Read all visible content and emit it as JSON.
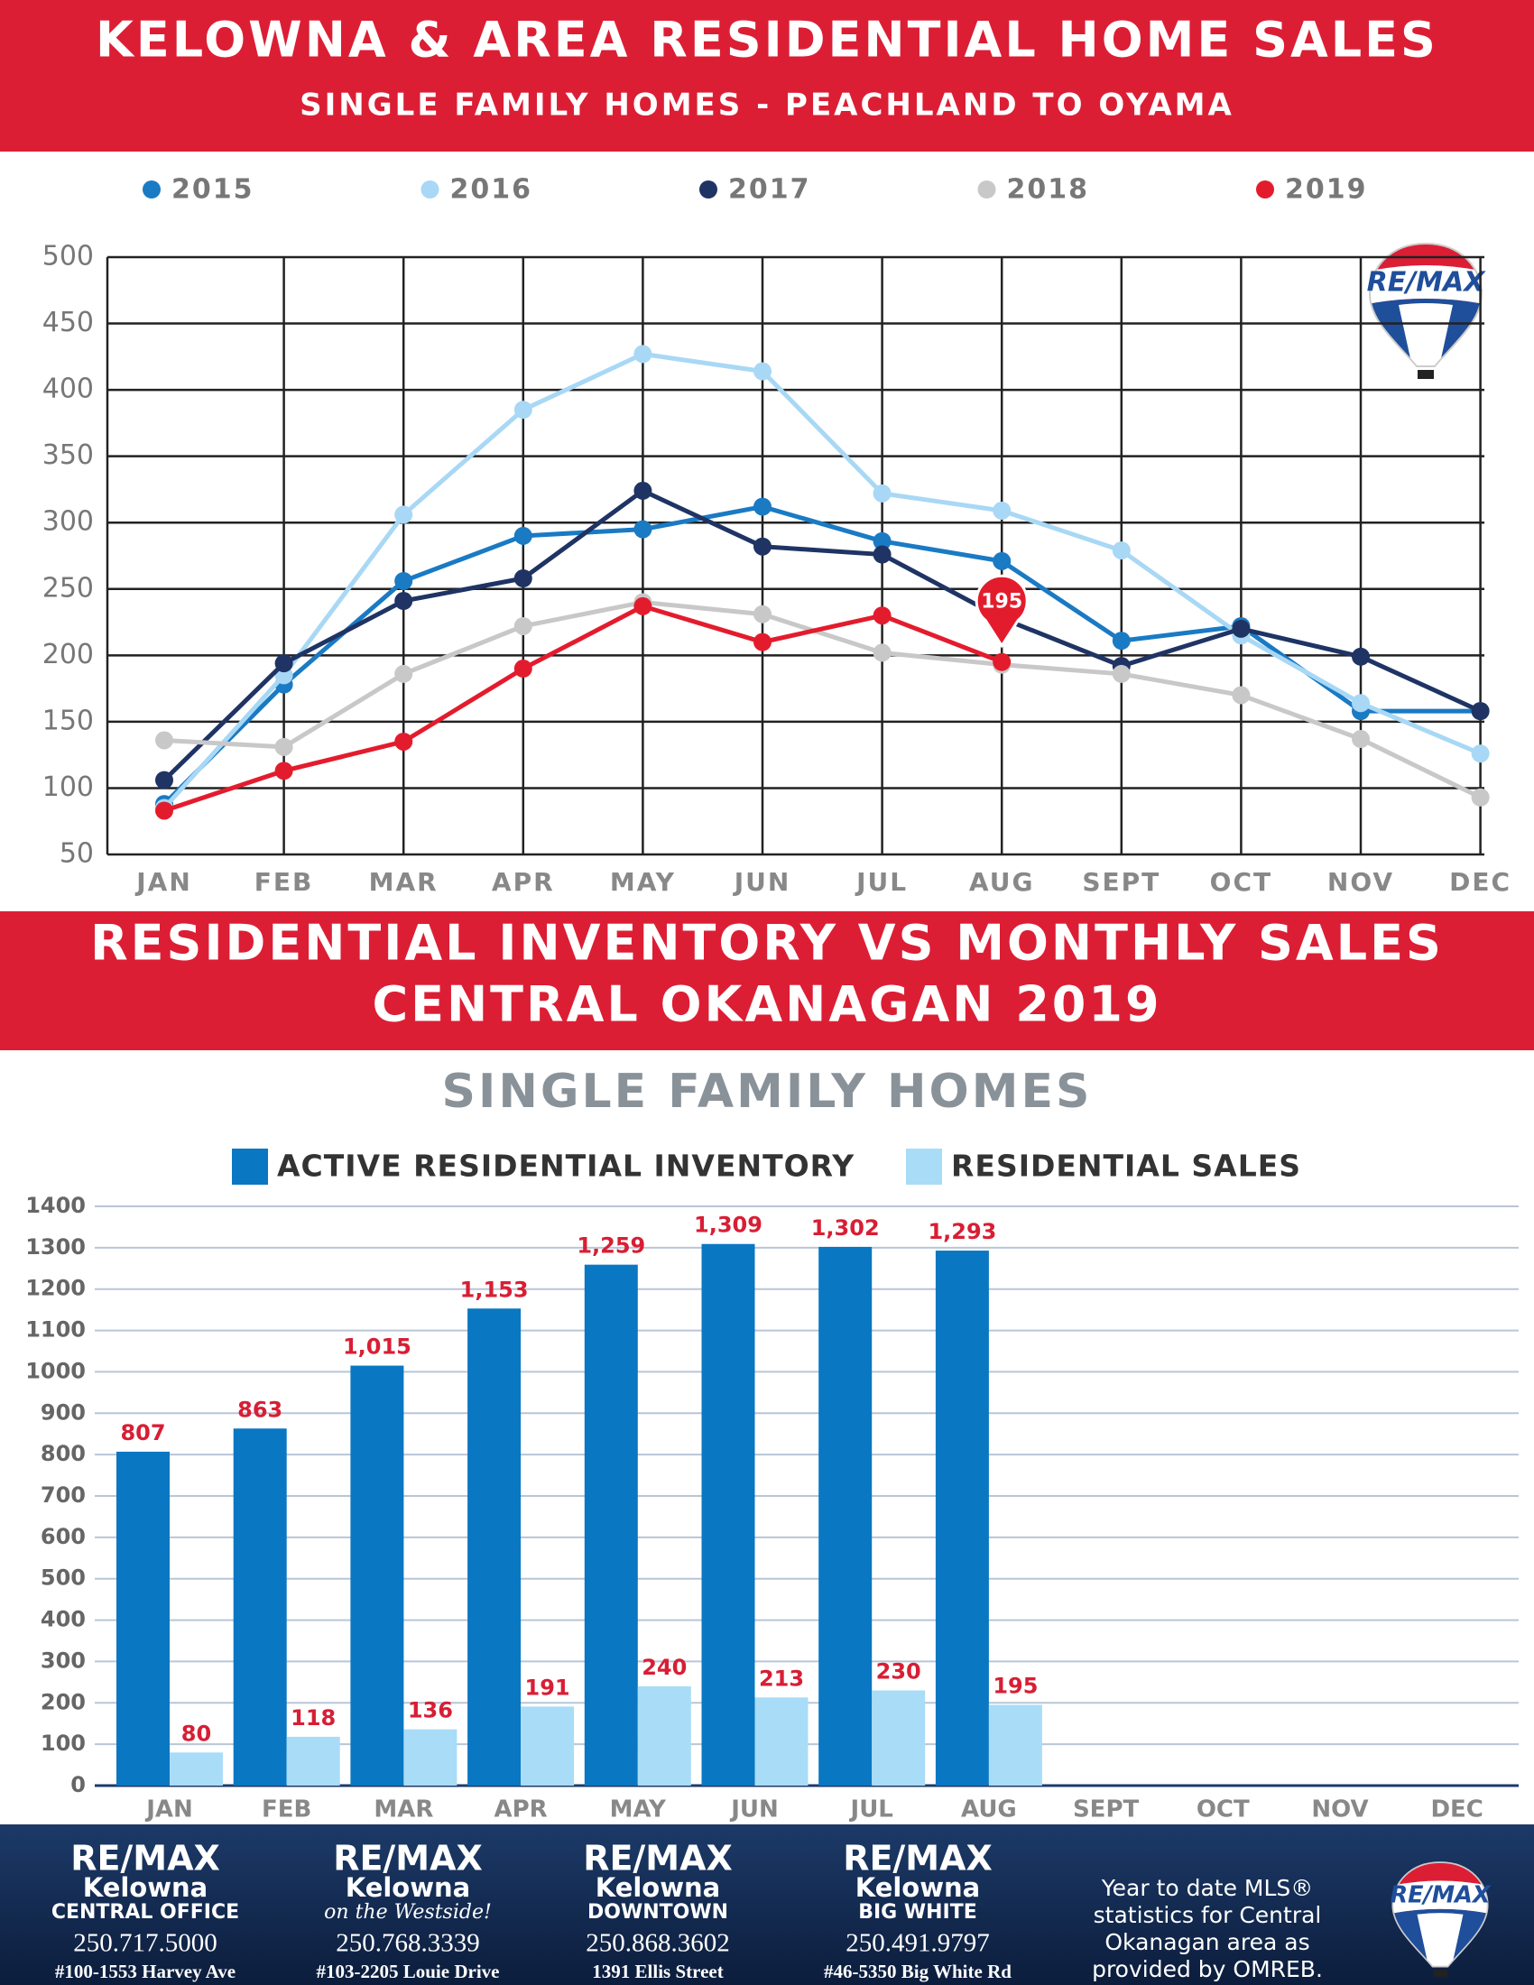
{
  "chart_data": [
    {
      "type": "line",
      "title": "KELOWNA & AREA RESIDENTIAL HOME SALES",
      "subtitle": "SINGLE FAMILY HOMES - PEACHLAND TO OYAMA",
      "categories": [
        "JAN",
        "FEB",
        "MAR",
        "APR",
        "MAY",
        "JUN",
        "JUL",
        "AUG",
        "SEPT",
        "OCT",
        "NOV",
        "DEC"
      ],
      "series": [
        {
          "name": "2015",
          "color": "#1a7ac4",
          "values": [
            88,
            178,
            256,
            290,
            295,
            312,
            286,
            271,
            211,
            222,
            158,
            158
          ]
        },
        {
          "name": "2016",
          "color": "#a8d8f5",
          "values": [
            85,
            185,
            306,
            385,
            427,
            414,
            322,
            309,
            279,
            215,
            164,
            126
          ]
        },
        {
          "name": "2017",
          "color": "#1f3464",
          "values": [
            106,
            194,
            241,
            258,
            324,
            282,
            276,
            228,
            192,
            220,
            199,
            158
          ]
        },
        {
          "name": "2018",
          "color": "#c8c8c8",
          "values": [
            136,
            131,
            186,
            222,
            240,
            231,
            202,
            193,
            186,
            170,
            137,
            93
          ]
        },
        {
          "name": "2019",
          "color": "#e31c2d",
          "values": [
            83,
            113,
            135,
            190,
            237,
            210,
            230,
            195,
            null,
            null,
            null,
            null
          ]
        }
      ],
      "annotations": [
        {
          "text": "195",
          "x": "AUG",
          "y": 195
        }
      ],
      "ylim": [
        50,
        500
      ],
      "yticks": [
        50,
        100,
        150,
        200,
        250,
        300,
        350,
        400,
        450,
        500
      ],
      "grid": true
    },
    {
      "type": "bar",
      "title": "RESIDENTIAL INVENTORY VS MONTHLY SALES",
      "subtitle": "CENTRAL OKANAGAN 2019",
      "heading": "SINGLE FAMILY HOMES",
      "categories": [
        "JAN",
        "FEB",
        "MAR",
        "APR",
        "MAY",
        "JUN",
        "JUL",
        "AUG",
        "SEPT",
        "OCT",
        "NOV",
        "DEC"
      ],
      "series": [
        {
          "name": "ACTIVE RESIDENTIAL INVENTORY",
          "color": "#0a77c2",
          "values": [
            807,
            863,
            1015,
            1153,
            1259,
            1309,
            1302,
            1293,
            null,
            null,
            null,
            null
          ],
          "value_labels": [
            "807",
            "863",
            "1,015",
            "1,153",
            "1,259",
            "1,309",
            "1,302",
            "1,293",
            null,
            null,
            null,
            null
          ]
        },
        {
          "name": "RESIDENTIAL SALES",
          "color": "#a9dcf7",
          "values": [
            80,
            118,
            136,
            191,
            240,
            213,
            230,
            195,
            null,
            null,
            null,
            null
          ]
        }
      ],
      "ylim": [
        0,
        1400
      ],
      "yticks": [
        0,
        100,
        200,
        300,
        400,
        500,
        600,
        700,
        800,
        900,
        1000,
        1100,
        1200,
        1300,
        1400
      ],
      "grid": true
    }
  ],
  "logo_text": "RE/MAX",
  "footer": {
    "offices": [
      {
        "brand": "RE/MAX",
        "name": "Kelowna",
        "sub": "CENTRAL OFFICE",
        "phone": "250.717.5000",
        "address": "#100-1553 Harvey Ave"
      },
      {
        "brand": "RE/MAX",
        "name": "Kelowna",
        "sub": "on the Westside!",
        "phone": "250.768.3339",
        "address": "#103-2205 Louie Drive"
      },
      {
        "brand": "RE/MAX",
        "name": "Kelowna",
        "sub": "DOWNTOWN",
        "phone": "250.868.3602",
        "address": "1391 Ellis Street"
      },
      {
        "brand": "RE/MAX",
        "name": "Kelowna",
        "sub": "BIG WHITE",
        "phone": "250.491.9797",
        "address": "#46-5350 Big White Rd"
      }
    ],
    "note": [
      "Year to date MLS®",
      "statistics for Central",
      "Okanagan area as",
      "provided by OMREB."
    ]
  }
}
